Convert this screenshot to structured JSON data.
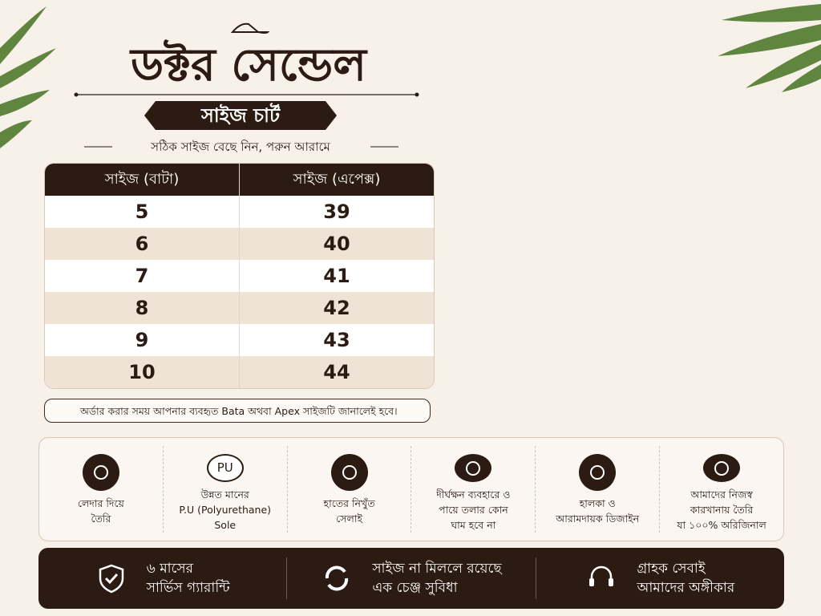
{
  "header": {
    "title": "ডক্টর সেন্ডেল",
    "badge": "সাইজ চার্ট",
    "tagline": "সঠিক সাইজ বেছে নিন, পরুন আরামে"
  },
  "table": {
    "columns": [
      "সাইজ (বাটা)",
      "সাইজ (এপেক্স)"
    ],
    "rows": [
      [
        5,
        39
      ],
      [
        6,
        40
      ],
      [
        7,
        41
      ],
      [
        8,
        42
      ],
      [
        9,
        43
      ],
      [
        10,
        44
      ]
    ]
  },
  "note": "অর্ডার করার সময় আপনার ব্যবহৃত Bata অথবা Apex সাইজটি জানালেই হবে।",
  "features": [
    {
      "lines": [
        "লেদার দিয়ে",
        "তৈরি"
      ]
    },
    {
      "icon_text": "PU",
      "lines": [
        "উন্নত মানের",
        "P.U (Polyurethane)",
        "Sole"
      ]
    },
    {
      "lines": [
        "হাতের নিখুঁত",
        "সেলাই"
      ]
    },
    {
      "lines": [
        "দীর্ঘক্ষন ব্যবহারে ও",
        "পায়ে তলার কোন",
        "ঘাম হবে না"
      ]
    },
    {
      "lines": [
        "হালকা ও",
        "আরামদায়ক ডিজাইন"
      ]
    },
    {
      "lines": [
        "আমাদের নিজস্ব",
        "কারখানায় তৈরি",
        "যা ১০০% অরিজিনাল"
      ]
    }
  ],
  "guarantees": [
    {
      "lines": [
        "৬ মাসের",
        "সার্ভিস গ্যারান্টি"
      ]
    },
    {
      "lines": [
        "সাইজ না মিললে রয়েছে",
        "এক চেঞ্জ সুবিধা"
      ]
    },
    {
      "lines": [
        "গ্রাহক সেবাই",
        "আমাদের অঙ্গীকার"
      ]
    }
  ]
}
